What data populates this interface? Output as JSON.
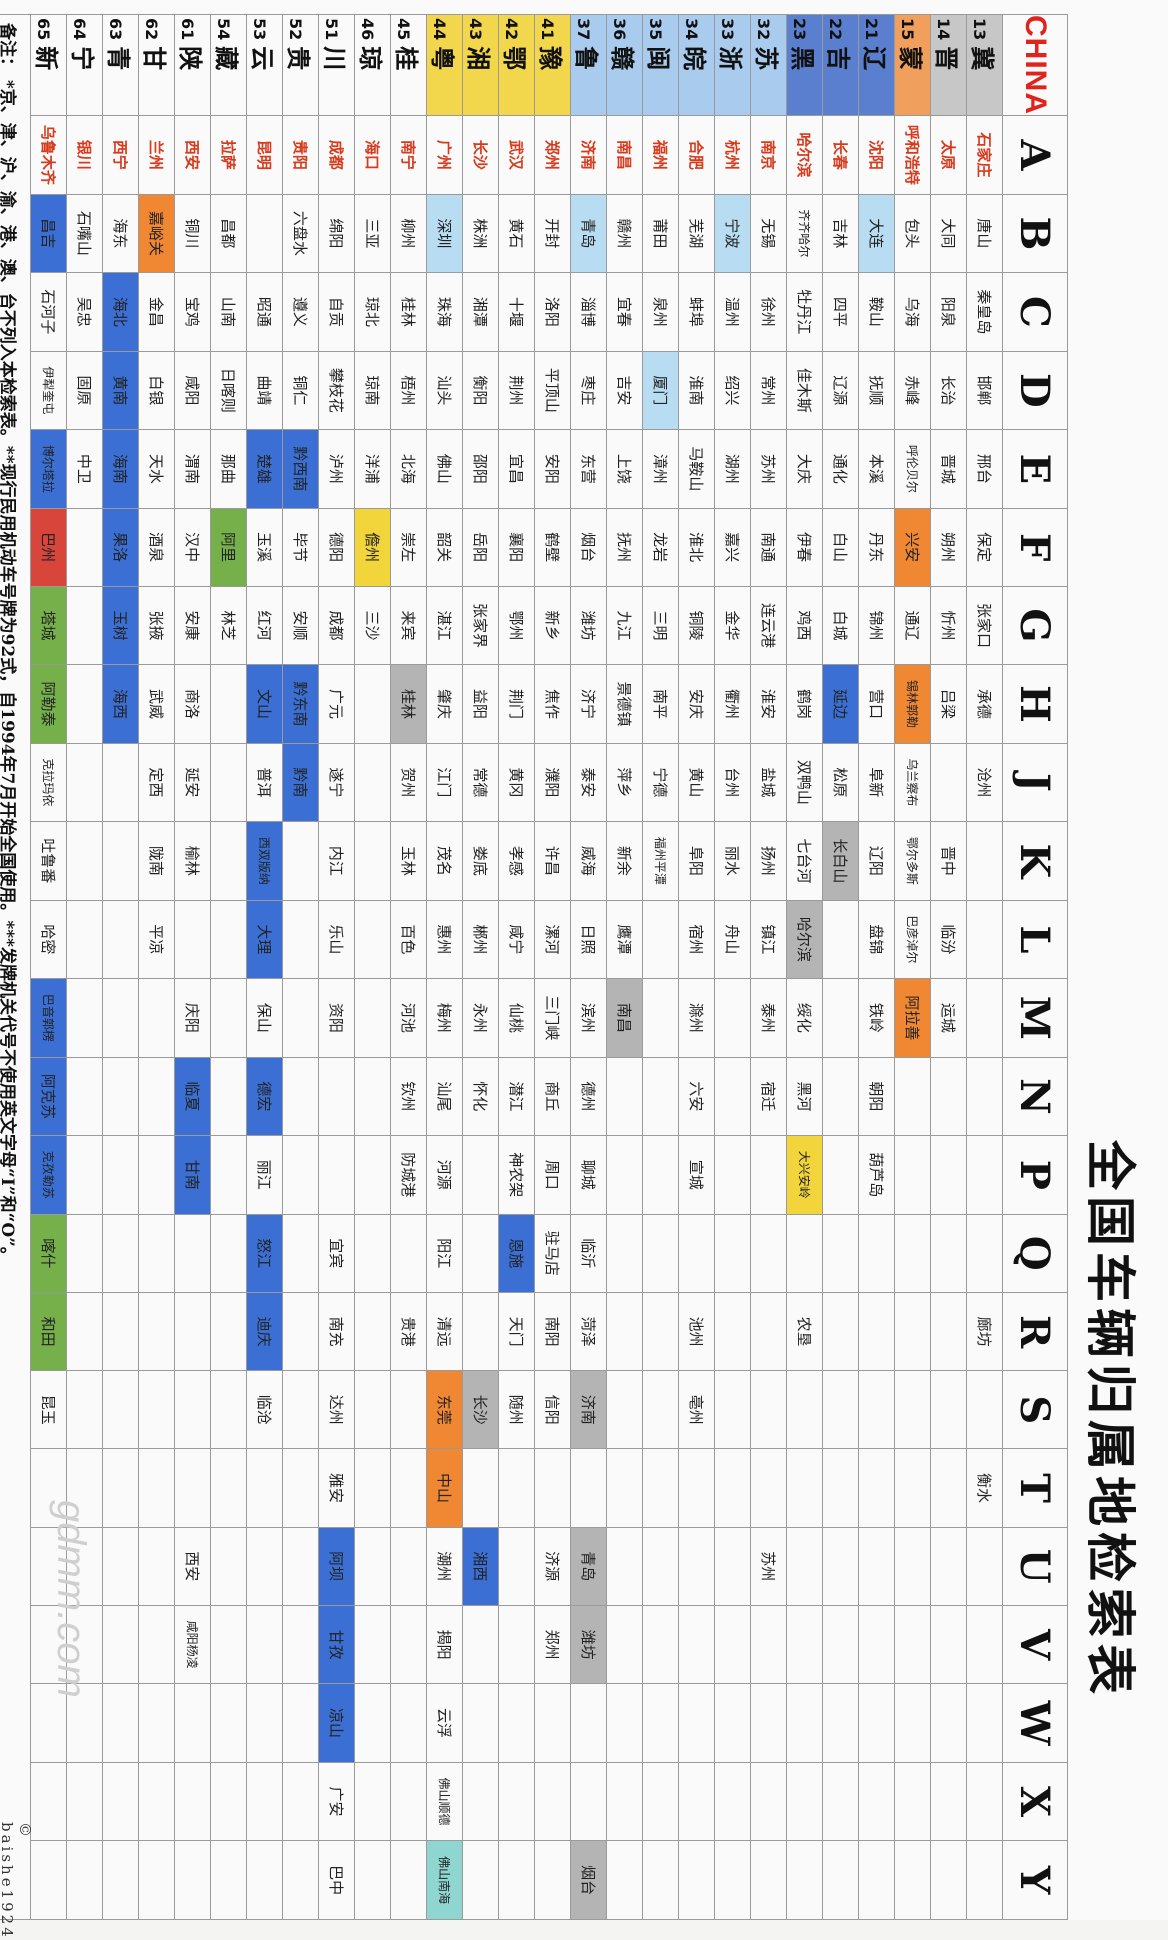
{
  "title": "全国车辆归属地检索表",
  "corner": "CHINA",
  "letters": [
    "A",
    "B",
    "C",
    "D",
    "E",
    "F",
    "G",
    "H",
    "J",
    "K",
    "L",
    "M",
    "N",
    "P",
    "Q",
    "R",
    "S",
    "T",
    "U",
    "V",
    "W",
    "X",
    "Y"
  ],
  "colors": {
    "gray": "#b4b4b4",
    "orange": "#f08733",
    "yellow": "#f2d53a",
    "blue": "#3b6fd3",
    "lightblue": "#b8dcf2",
    "green": "#76b04a",
    "teal": "#8fd6d0",
    "red": "#d8453a",
    "capital_text": "#d63b1e",
    "china_text": "#e0231d"
  },
  "rows": [
    {
      "code": "13",
      "prov": "冀",
      "pc": "gray",
      "cells": [
        "石家庄",
        "唐山",
        "秦皇岛",
        "邯郸",
        "邢台",
        "保定",
        "张家口",
        "承德",
        "沧州",
        "",
        "",
        "",
        "",
        "",
        "",
        "廊坊",
        "",
        "衡水",
        "",
        "",
        "",
        "",
        ""
      ]
    },
    {
      "code": "14",
      "prov": "晋",
      "pc": "gray",
      "cells": [
        "太原",
        "大同",
        "阳泉",
        "长治",
        "晋城",
        "朔州",
        "忻州",
        "吕梁",
        "",
        "晋中",
        "临汾",
        "运城",
        "",
        "",
        "",
        "",
        "",
        "",
        "",
        "",
        "",
        "",
        ""
      ]
    },
    {
      "code": "15",
      "prov": "蒙",
      "pc": "orange",
      "cells": [
        "呼和浩特",
        "包头",
        "乌海",
        "赤峰",
        "呼伦贝尔",
        "兴安",
        "通辽",
        "锡林郭勒",
        "乌兰察布",
        "鄂尔多斯",
        "巴彦淖尔",
        "阿拉善",
        "",
        "",
        "",
        "",
        "",
        "",
        "",
        "",
        "",
        "",
        ""
      ]
    },
    {
      "code": "21",
      "prov": "辽",
      "pc": "dblue",
      "cells": [
        "沈阳",
        "大连",
        "鞍山",
        "抚顺",
        "本溪",
        "丹东",
        "锦州",
        "营口",
        "阜新",
        "辽阳",
        "盘锦",
        "铁岭",
        "朝阳",
        "葫芦岛",
        "",
        "",
        "",
        "",
        "",
        "",
        "",
        "",
        ""
      ]
    },
    {
      "code": "22",
      "prov": "吉",
      "pc": "dblue",
      "cells": [
        "长春",
        "吉林",
        "四平",
        "辽源",
        "通化",
        "白山",
        "白城",
        "延边",
        "松原",
        "长白山",
        "",
        "",
        "",
        "",
        "",
        "",
        "",
        "",
        "",
        "",
        "",
        "",
        ""
      ]
    },
    {
      "code": "23",
      "prov": "黑",
      "pc": "dblue",
      "cells": [
        "哈尔滨",
        "齐齐哈尔",
        "牡丹江",
        "佳木斯",
        "大庆",
        "伊春",
        "鸡西",
        "鹤岗",
        "双鸭山",
        "七台河",
        "哈尔滨",
        "绥化",
        "黑河",
        "大兴安岭",
        "",
        "农垦",
        "",
        "",
        "",
        "",
        "",
        "",
        ""
      ]
    },
    {
      "code": "32",
      "prov": "苏",
      "pc": "lblue",
      "cells": [
        "南京",
        "无锡",
        "徐州",
        "常州",
        "苏州",
        "南通",
        "连云港",
        "淮安",
        "盐城",
        "扬州",
        "镇江",
        "泰州",
        "宿迁",
        "",
        "",
        "",
        "",
        "",
        "苏州",
        "",
        "",
        "",
        ""
      ]
    },
    {
      "code": "33",
      "prov": "浙",
      "pc": "lblue",
      "cells": [
        "杭州",
        "宁波",
        "温州",
        "绍兴",
        "湖州",
        "嘉兴",
        "金华",
        "衢州",
        "台州",
        "丽水",
        "舟山",
        "",
        "",
        "",
        "",
        "",
        "",
        "",
        "",
        "",
        "",
        "",
        ""
      ]
    },
    {
      "code": "34",
      "prov": "皖",
      "pc": "lblue",
      "cells": [
        "合肥",
        "芜湖",
        "蚌埠",
        "淮南",
        "马鞍山",
        "淮北",
        "铜陵",
        "安庆",
        "黄山",
        "阜阳",
        "宿州",
        "滁州",
        "六安",
        "宣城",
        "",
        "池州",
        "亳州",
        "",
        "",
        "",
        "",
        "",
        ""
      ]
    },
    {
      "code": "35",
      "prov": "闽",
      "pc": "lblue",
      "cells": [
        "福州",
        "莆田",
        "泉州",
        "厦门",
        "漳州",
        "龙岩",
        "三明",
        "南平",
        "宁德",
        "福州平潭",
        "",
        "",
        "",
        "",
        "",
        "",
        "",
        "",
        "",
        "",
        "",
        "",
        ""
      ]
    },
    {
      "code": "36",
      "prov": "赣",
      "pc": "lblue",
      "cells": [
        "南昌",
        "赣州",
        "宜春",
        "吉安",
        "上饶",
        "抚州",
        "九江",
        "景德镇",
        "萍乡",
        "新余",
        "鹰潭",
        "南昌",
        "",
        "",
        "",
        "",
        "",
        "",
        "",
        "",
        "",
        "",
        ""
      ]
    },
    {
      "code": "37",
      "prov": "鲁",
      "pc": "lblue",
      "cells": [
        "济南",
        "青岛",
        "淄博",
        "枣庄",
        "东营",
        "烟台",
        "潍坊",
        "济宁",
        "泰安",
        "威海",
        "日照",
        "滨州",
        "德州",
        "聊城",
        "临沂",
        "菏泽",
        "济南",
        "",
        "青岛",
        "潍坊",
        "",
        "",
        "烟台"
      ]
    },
    {
      "code": "41",
      "prov": "豫",
      "pc": "yellow",
      "cells": [
        "郑州",
        "开封",
        "洛阳",
        "平顶山",
        "安阳",
        "鹤壁",
        "新乡",
        "焦作",
        "濮阳",
        "许昌",
        "漯河",
        "三门峡",
        "商丘",
        "周口",
        "驻马店",
        "南阳",
        "信阳",
        "",
        "济源",
        "郑州",
        "",
        "",
        ""
      ]
    },
    {
      "code": "42",
      "prov": "鄂",
      "pc": "yellow",
      "cells": [
        "武汉",
        "黄石",
        "十堰",
        "荆州",
        "宜昌",
        "襄阳",
        "鄂州",
        "荆门",
        "黄冈",
        "孝感",
        "咸宁",
        "仙桃",
        "潜江",
        "神农架",
        "恩施",
        "天门",
        "随州",
        "",
        "",
        "",
        "",
        "",
        ""
      ]
    },
    {
      "code": "43",
      "prov": "湘",
      "pc": "yellow",
      "cells": [
        "长沙",
        "株洲",
        "湘潭",
        "衡阳",
        "邵阳",
        "岳阳",
        "张家界",
        "益阳",
        "常德",
        "娄底",
        "郴州",
        "永州",
        "怀化",
        "",
        "",
        "",
        "长沙",
        "",
        "湘西",
        "",
        "",
        "",
        ""
      ]
    },
    {
      "code": "44",
      "prov": "粤",
      "pc": "yellow",
      "cells": [
        "广州",
        "深圳",
        "珠海",
        "汕头",
        "佛山",
        "韶关",
        "湛江",
        "肇庆",
        "江门",
        "茂名",
        "惠州",
        "梅州",
        "汕尾",
        "河源",
        "阳江",
        "清远",
        "东莞",
        "中山",
        "潮州",
        "揭阳",
        "云浮",
        "佛山顺德",
        "佛山南海"
      ]
    },
    {
      "code": "45",
      "prov": "桂",
      "pc": "white",
      "cells": [
        "南宁",
        "柳州",
        "桂林",
        "梧州",
        "北海",
        "崇左",
        "来宾",
        "桂林",
        "贺州",
        "玉林",
        "百色",
        "河池",
        "钦州",
        "防城港",
        "",
        "贵港",
        "",
        "",
        "",
        "",
        "",
        "",
        ""
      ]
    },
    {
      "code": "46",
      "prov": "琼",
      "pc": "white",
      "cells": [
        "海口",
        "三亚",
        "琼北",
        "琼南",
        "洋浦",
        "儋州",
        "三沙",
        "",
        "",
        "",
        "",
        "",
        "",
        "",
        "",
        "",
        "",
        "",
        "",
        "",
        "",
        "",
        ""
      ]
    },
    {
      "code": "51",
      "prov": "川",
      "pc": "white",
      "cells": [
        "成都",
        "绵阳",
        "自贡",
        "攀枝花",
        "泸州",
        "德阳",
        "成都",
        "广元",
        "遂宁",
        "内江",
        "乐山",
        "资阳",
        "",
        "",
        "宜宾",
        "南充",
        "达州",
        "雅安",
        "阿坝",
        "甘孜",
        "凉山",
        "广安",
        "巴中"
      ]
    },
    {
      "code": "52",
      "prov": "贵",
      "pc": "white",
      "cells": [
        "贵阳",
        "六盘水",
        "遵义",
        "铜仁",
        "黔西南",
        "毕节",
        "安顺",
        "黔东南",
        "黔南",
        "",
        "",
        "",
        "",
        "",
        "",
        "",
        "",
        "",
        "",
        "",
        "",
        "",
        ""
      ]
    },
    {
      "code": "53",
      "prov": "云",
      "pc": "white",
      "cells": [
        "昆明",
        "",
        "昭通",
        "曲靖",
        "楚雄",
        "玉溪",
        "红河",
        "文山",
        "普洱",
        "西双版纳",
        "大理",
        "保山",
        "德宏",
        "丽江",
        "怒江",
        "迪庆",
        "临沧",
        "",
        "",
        "",
        "",
        "",
        ""
      ]
    },
    {
      "code": "54",
      "prov": "藏",
      "pc": "white",
      "cells": [
        "拉萨",
        "昌都",
        "山南",
        "日喀则",
        "那曲",
        "阿里",
        "林芝",
        "",
        "",
        "",
        "",
        "",
        "",
        "",
        "",
        "",
        "",
        "",
        "",
        "",
        "",
        "",
        ""
      ]
    },
    {
      "code": "61",
      "prov": "陕",
      "pc": "white",
      "cells": [
        "西安",
        "铜川",
        "宝鸡",
        "咸阳",
        "渭南",
        "汉中",
        "安康",
        "商洛",
        "延安",
        "榆林",
        "",
        "庆阳",
        "临夏",
        "甘南",
        "",
        "",
        "",
        "",
        "西安",
        "咸阳杨凌",
        "",
        "",
        ""
      ]
    },
    {
      "code": "62",
      "prov": "甘",
      "pc": "white",
      "cells": [
        "兰州",
        "嘉峪关",
        "金昌",
        "白银",
        "天水",
        "酒泉",
        "张掖",
        "武威",
        "定西",
        "陇南",
        "平凉",
        "",
        "",
        "",
        "",
        "",
        "",
        "",
        "",
        "",
        "",
        "",
        ""
      ]
    },
    {
      "code": "63",
      "prov": "青",
      "pc": "white",
      "cells": [
        "西宁",
        "海东",
        "海北",
        "黄南",
        "海南",
        "果洛",
        "玉树",
        "海西",
        "",
        "",
        "",
        "",
        "",
        "",
        "",
        "",
        "",
        "",
        "",
        "",
        "",
        "",
        ""
      ]
    },
    {
      "code": "64",
      "prov": "宁",
      "pc": "white",
      "cells": [
        "银川",
        "石嘴山",
        "吴忠",
        "固原",
        "中卫",
        "",
        "",
        "",
        "",
        "",
        "",
        "",
        "",
        "",
        "",
        "",
        "",
        "",
        "",
        "",
        "",
        "",
        ""
      ]
    },
    {
      "code": "65",
      "prov": "新",
      "pc": "white",
      "cells": [
        "乌鲁木齐",
        "昌吉",
        "石河子",
        "伊犁奎屯",
        "博尔塔拉",
        "巴州",
        "塔城",
        "阿勒泰",
        "克拉玛依",
        "吐鲁番",
        "哈密",
        "巴音郭楞",
        "阿克苏",
        "克孜勒苏",
        "喀什",
        "和田",
        "昆玉",
        "",
        "",
        "",
        "",
        "",
        ""
      ]
    }
  ],
  "highlights": {
    "13-0": "capital",
    "14-0": "capital",
    "15-0": "capital",
    "15-5": "orange",
    "15-7": "orange",
    "15-11": "orange",
    "21-0": "capital",
    "21-1": "lightblue",
    "22-0": "capital",
    "22-7": "blue",
    "22-9": "gray",
    "23-0": "capital",
    "23-10": "gray",
    "23-13": "yellow",
    "32-0": "capital",
    "33-0": "capital",
    "33-1": "lightblue",
    "34-0": "capital",
    "35-0": "capital",
    "35-3": "lightblue",
    "36-0": "capital",
    "36-11": "gray",
    "37-0": "capital",
    "37-1": "lightblue",
    "37-16": "gray",
    "37-18": "gray",
    "37-19": "gray",
    "37-22": "gray",
    "41-0": "capital",
    "42-0": "capital",
    "42-14": "blue",
    "43-0": "capital",
    "43-16": "gray",
    "43-18": "blue",
    "44-0": "capital",
    "44-1": "lightblue",
    "44-16": "orange",
    "44-17": "orange",
    "44-22": "teal",
    "45-0": "capital",
    "45-7": "gray",
    "46-0": "capital",
    "46-5": "yellow",
    "51-0": "capital",
    "51-18": "blue",
    "51-19": "blue",
    "51-20": "blue",
    "52-0": "capital",
    "52-4": "blue",
    "52-7": "blue",
    "52-8": "blue",
    "53-0": "capital",
    "53-4": "blue",
    "53-7": "blue",
    "53-9": "blue",
    "53-10": "blue",
    "53-12": "blue",
    "53-14": "blue",
    "53-15": "blue",
    "54-0": "capital",
    "54-5": "green",
    "61-0": "capital",
    "61-0x": "",
    "61-12": "blue",
    "61-13": "blue",
    "62-0": "capital",
    "62-1": "orange",
    "63-0": "capital",
    "63-2": "blue",
    "63-3": "blue",
    "63-4": "blue",
    "63-5": "blue",
    "63-6": "blue",
    "63-7": "blue",
    "64-0": "capital",
    "65-0": "capital",
    "65-1": "blue",
    "65-4": "blue",
    "65-5": "red",
    "65-6": "green",
    "65-7": "green",
    "65-11": "blue",
    "65-12": "blue",
    "65-13": "blue",
    "65-14": "green",
    "65-15": "green"
  },
  "note": "备注：  *京、津、沪、渝、港、澳、台不列入本检索表。**现行民用机动车号牌为92式，自1994年7月开始全国使用。***发牌机关代号不使用英文字母“I”和“O”。",
  "watermark": "gdmm.com",
  "credit": "© baishe1924"
}
